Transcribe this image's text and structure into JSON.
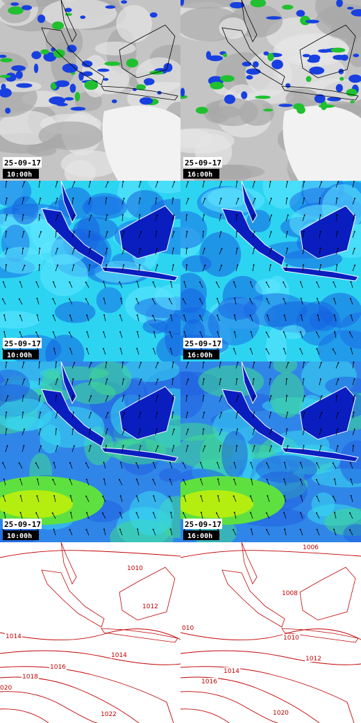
{
  "panels": [
    [
      {
        "date": "25-09-17",
        "time": "10:00h"
      },
      {
        "date": "25-09-17",
        "time": "16:00h"
      }
    ],
    [
      {
        "date": "25-09-17",
        "time": "10:00h"
      },
      {
        "date": "25-09-17",
        "time": "16:00h"
      }
    ],
    [
      {
        "date": "25-09-17",
        "time": "10:00h"
      },
      {
        "date": "25-09-17",
        "time": "16:00h"
      }
    ]
  ],
  "isobars": [
    [
      "1010",
      "1012",
      "1014",
      "1014",
      "1016",
      "1018",
      "020",
      "1022"
    ],
    [
      "1006",
      "1008",
      "010",
      "1010",
      "1012",
      "1014",
      "1016",
      "1020"
    ]
  ]
}
